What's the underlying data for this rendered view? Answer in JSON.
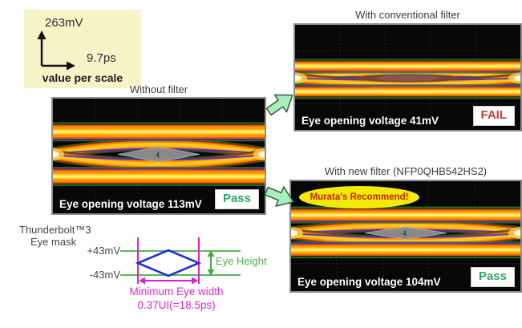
{
  "scale_box": {
    "vertical_value": "263mV",
    "horizontal_value": "9.7ps",
    "caption": "value per scale"
  },
  "panels": [
    {
      "id": "without",
      "title": "Without filter",
      "eye_voltage_label": "Eye opening voltage 113mV",
      "eye_opening_mv": 113,
      "badge": "Pass",
      "badge_type": "pass"
    },
    {
      "id": "conventional",
      "title": "With conventional filter",
      "eye_voltage_label": "Eye opening voltage 41mV",
      "eye_opening_mv": 41,
      "badge": "FAIL",
      "badge_type": "fail"
    },
    {
      "id": "new",
      "title": "With new filter (NFP0QHB542HS2)",
      "eye_voltage_label": "Eye opening voltage 104mV",
      "eye_opening_mv": 104,
      "badge": "Pass",
      "badge_type": "pass",
      "callout": "Murata's Recommend!"
    }
  ],
  "eye_mask": {
    "title_line1": "Thunderbolt™3",
    "title_line2": "Eye mask",
    "upper_voltage": "+43mV",
    "lower_voltage": "-43mV",
    "height_label": "Eye Height",
    "width_label_line1": "Minimum Eye width",
    "width_label_line2": "0.37UI(=18.5ps)"
  },
  "colors": {
    "pass": "#2fa868",
    "fail": "#d03a3a",
    "callout_bg": "#f2ea0a",
    "callout_text": "#cc2200",
    "mask_green": "#44aa44",
    "mask_magenta": "#e020d0",
    "mask_blue": "#2233cc",
    "arrow_fill": "#a8efbe",
    "scale_box_bg": "#f7f3c9",
    "trace_orange": "#ff8a00"
  }
}
